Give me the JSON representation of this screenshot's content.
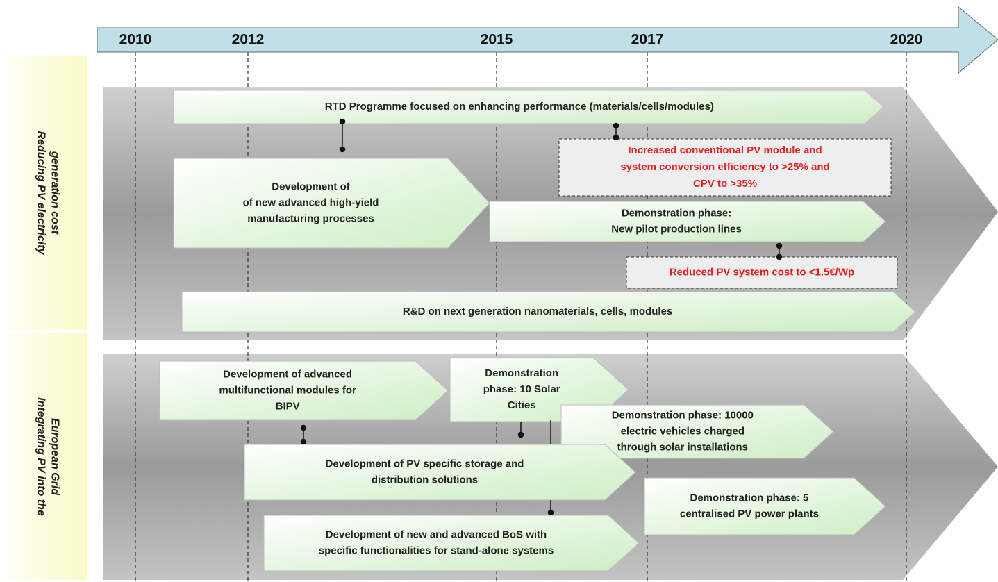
{
  "timeline": {
    "years": [
      "2010",
      "2012",
      "2015",
      "2017",
      "2020"
    ]
  },
  "sections": [
    {
      "label": [
        "Reducing PV electricity",
        "generation cost"
      ],
      "activities": [
        {
          "lines": [
            "RTD Programme focused on enhancing performance (materials/cells/modules)"
          ]
        },
        {
          "lines": [
            "Development of",
            "of new advanced high-yield",
            "manufacturing processes"
          ]
        },
        {
          "lines": [
            "Demonstration phase:",
            "New pilot production lines"
          ]
        },
        {
          "lines": [
            "R&D on  next generation nanomaterials, cells, modules"
          ]
        }
      ],
      "milestones": [
        {
          "lines": [
            "Increased conventional PV module and",
            "system conversion efficiency to >25% and",
            "CPV to >35%"
          ]
        },
        {
          "lines": [
            "Reduced PV system cost to <1.5€/Wp"
          ]
        }
      ]
    },
    {
      "label": [
        "Integrating PV into the",
        "European Grid"
      ],
      "activities": [
        {
          "lines": [
            "Development of advanced",
            "multifunctional modules for",
            "BIPV"
          ]
        },
        {
          "lines": [
            "Demonstration",
            "phase: 10 Solar",
            "Cities"
          ]
        },
        {
          "lines": [
            "Demonstration phase: 10000",
            "electric vehicles charged",
            "through solar installations"
          ]
        },
        {
          "lines": [
            "Development of PV specific storage and",
            "distribution solutions"
          ]
        },
        {
          "lines": [
            "Demonstration phase: 5",
            "centralised PV power plants"
          ]
        },
        {
          "lines": [
            "Development of new and advanced BoS with",
            "specific functionalities for stand-alone systems"
          ]
        }
      ],
      "milestones": []
    }
  ]
}
